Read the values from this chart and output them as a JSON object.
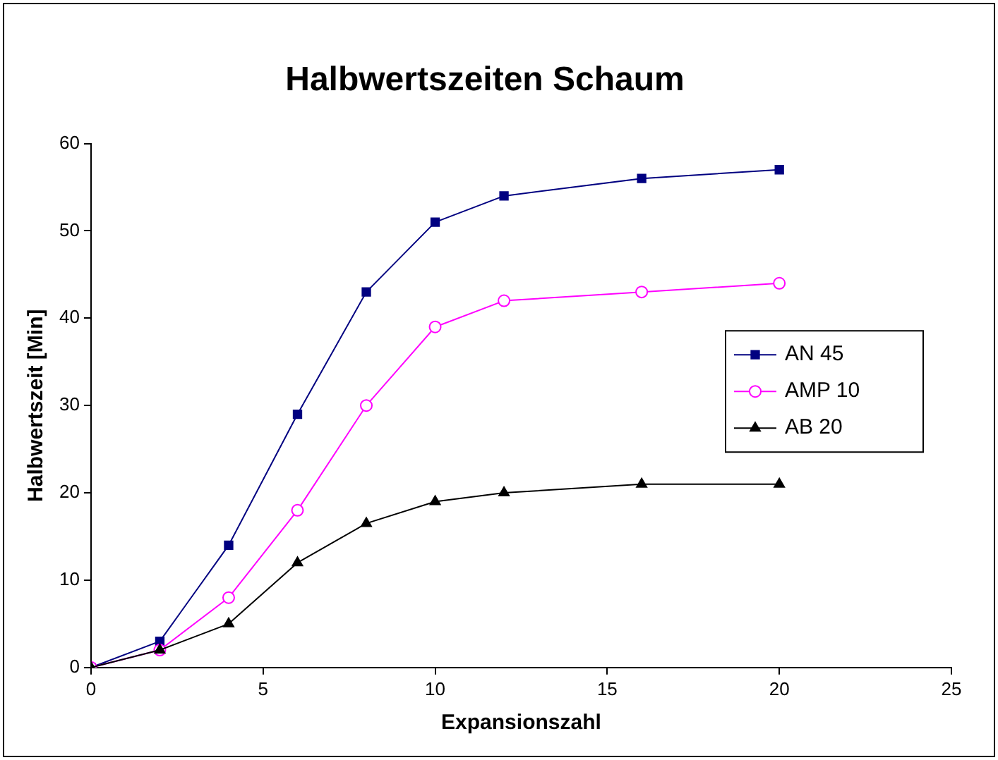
{
  "chart_data": {
    "type": "line",
    "title": "Halbwertszeiten Schaum",
    "xlabel": "Expansionszahl",
    "ylabel": "Halbwertszeit [Min]",
    "x": [
      0,
      2,
      4,
      6,
      8,
      10,
      12,
      16,
      20
    ],
    "series": [
      {
        "name": "AN 45",
        "color": "#000080",
        "marker": "square",
        "values": [
          0,
          3,
          14,
          29,
          43,
          51,
          54,
          56,
          57
        ]
      },
      {
        "name": "AMP 10",
        "color": "#ff00ff",
        "marker": "circle",
        "values": [
          0,
          2,
          8,
          18,
          30,
          39,
          42,
          43,
          44
        ]
      },
      {
        "name": "AB 20",
        "color": "#000000",
        "marker": "triangle",
        "values": [
          0,
          2,
          5,
          12,
          16.5,
          19,
          20,
          21,
          21
        ]
      }
    ],
    "xlim": [
      0,
      25
    ],
    "xticks": [
      0,
      5,
      10,
      15,
      20,
      25
    ],
    "ylim": [
      0,
      60
    ],
    "yticks": [
      0,
      10,
      20,
      30,
      40,
      50,
      60
    ],
    "grid": false,
    "legend": "right"
  }
}
